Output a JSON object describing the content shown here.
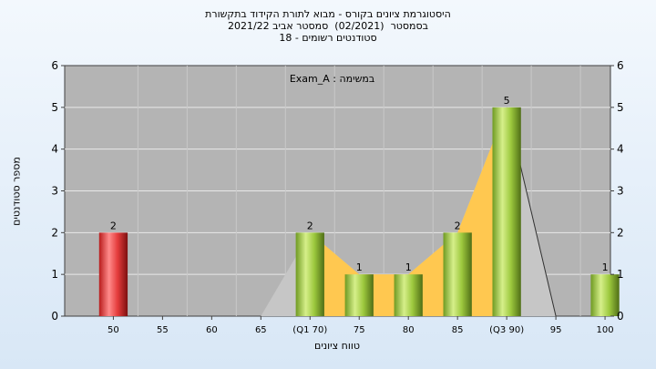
{
  "header": {
    "line1": "היסטוגרמת ציונים בקורס - מבוא לתורת הקידוד בתקשורת",
    "line2": "בסמסטר  (02/2021)  סמסטר אביב 2021/22",
    "line3": "סטודנטים רשומים - 18"
  },
  "chart_data": {
    "type": "bar",
    "title": "",
    "xlabel": "טווח ציונים",
    "ylabel": "מספר סטודנטים",
    "annotation": "Exam_A : במשימה",
    "ylim": [
      0,
      6
    ],
    "yticks": [
      0,
      1,
      2,
      3,
      4,
      5,
      6
    ],
    "grid": true,
    "categories": [
      "50",
      "55",
      "60",
      "65",
      "(Q1 70)",
      "75",
      "80",
      "85",
      "(Q3 90)",
      "95",
      "100"
    ],
    "values": [
      2,
      0,
      0,
      0,
      2,
      1,
      1,
      2,
      5,
      0,
      1
    ],
    "bar_colors": [
      "#e43b3b",
      null,
      null,
      null,
      "#9cc83d",
      "#9cc83d",
      "#9cc83d",
      "#9cc83d",
      "#9cc83d",
      null,
      "#9cc83d"
    ],
    "area_color": "#ffc850",
    "outline_area_color": "#c6c6c6"
  }
}
